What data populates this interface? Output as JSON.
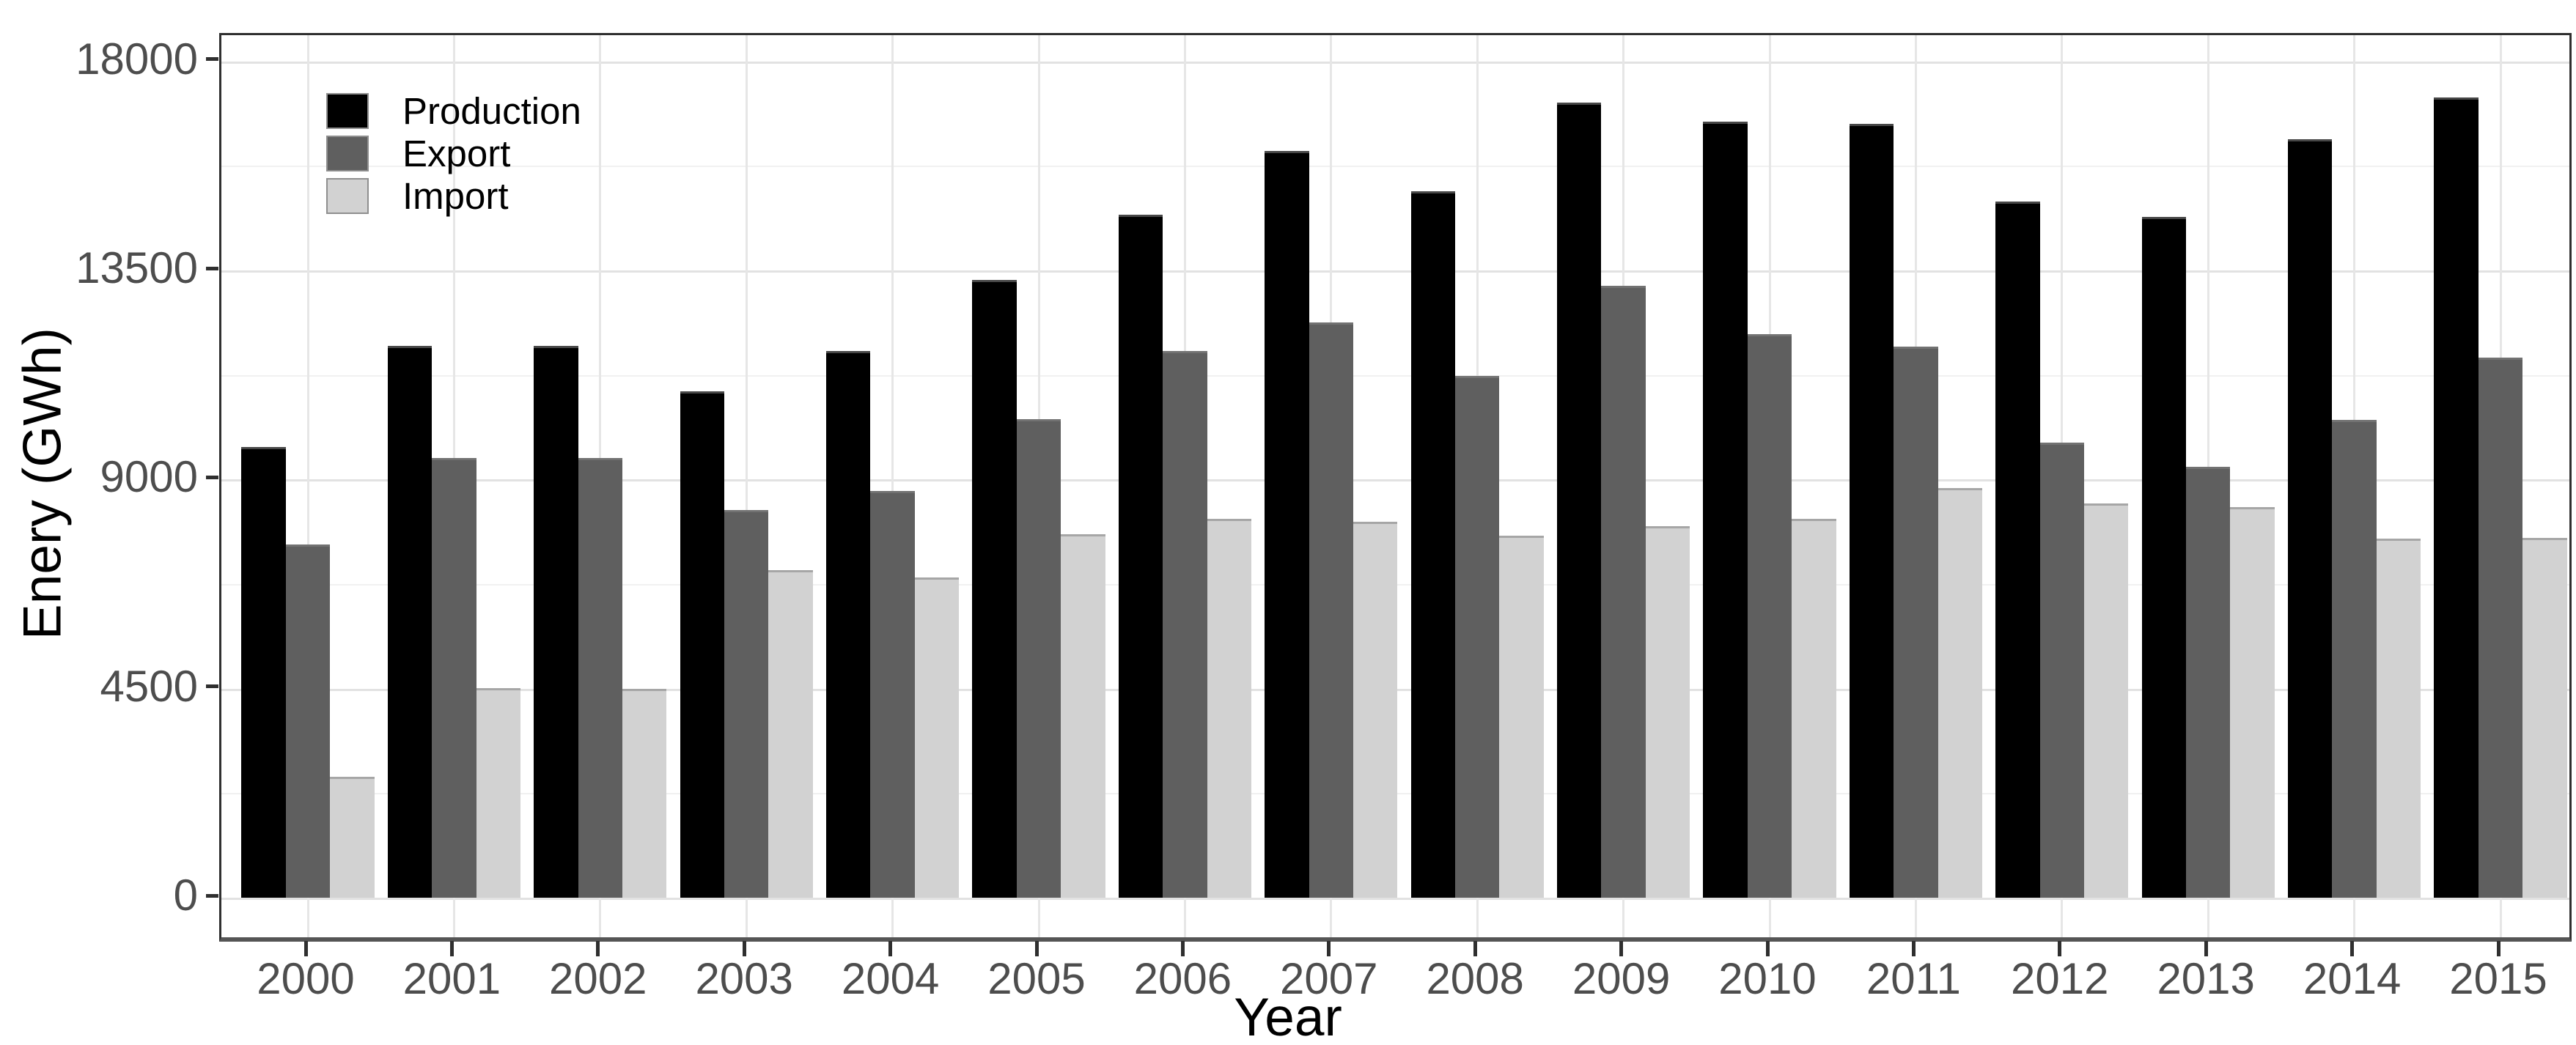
{
  "chart_data": {
    "type": "bar",
    "title": "",
    "xlabel": "Year",
    "ylabel": "Enery (GWh)",
    "categories": [
      "2000",
      "2001",
      "2002",
      "2003",
      "2004",
      "2005",
      "2006",
      "2007",
      "2008",
      "2009",
      "2010",
      "2011",
      "2012",
      "2013",
      "2014",
      "2015"
    ],
    "series": [
      {
        "name": "Production",
        "color": "#000000",
        "values": [
          9700,
          11880,
          11880,
          10900,
          11760,
          13290,
          14700,
          16080,
          15200,
          17120,
          16700,
          16660,
          14980,
          14650,
          16330,
          17230
        ]
      },
      {
        "name": "Export",
        "color": "#5f5f5f",
        "values": [
          7600,
          9470,
          9470,
          8350,
          8760,
          10300,
          11760,
          12380,
          11230,
          13170,
          12130,
          11860,
          9790,
          9270,
          10280,
          11620
        ]
      },
      {
        "name": "Import",
        "color": "#d2d2d2",
        "values": [
          2600,
          4510,
          4500,
          7050,
          6900,
          7820,
          8150,
          8090,
          7790,
          8000,
          8150,
          8820,
          8490,
          8400,
          7730,
          7750
        ]
      }
    ],
    "y_ticks": [
      0,
      4500,
      9000,
      13500,
      18000
    ],
    "y_tick_labels": [
      "0",
      "4500",
      "9000",
      "13500",
      "18000"
    ],
    "y_minor_ticks": [
      2250,
      6750,
      11250,
      15750
    ],
    "ylim": [
      0,
      18600
    ],
    "grid": true,
    "legend_position": "top-left-inside",
    "legend_labels": [
      "Production",
      "Export",
      "Import"
    ],
    "colors": {
      "production": "#000000",
      "export": "#5f5f5f",
      "import": "#d2d2d2",
      "grid_major": "#e2e2e2",
      "grid_minor": "#f1f1f1",
      "axis_text": "#4d4d4d",
      "panel_border": "#2f2f2f"
    }
  }
}
